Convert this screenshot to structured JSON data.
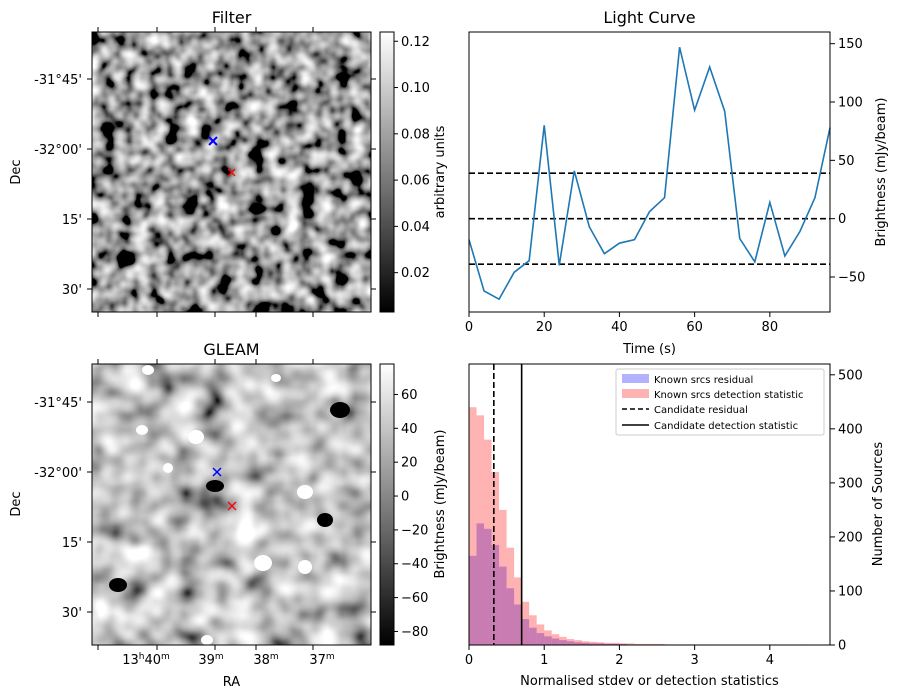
{
  "panels": {
    "filter": {
      "title": "Filter",
      "ylabel": "Dec",
      "ytick_labels": [
        "-31°45'",
        "-32°00'",
        "15'",
        "30'"
      ],
      "colorbar": {
        "label": "arbitrary units",
        "tick_labels": [
          "0.02",
          "0.04",
          "0.06",
          "0.08",
          "0.10",
          "0.12"
        ],
        "range": [
          0.003,
          0.124
        ]
      },
      "markers": [
        {
          "kind": "candidate",
          "color": "#0000ff"
        },
        {
          "kind": "offset",
          "color": "#ff0000"
        }
      ]
    },
    "gleam": {
      "title": "GLEAM",
      "ylabel": "Dec",
      "xlabel": "RA",
      "ytick_labels": [
        "-31°45'",
        "-32°00'",
        "15'",
        "30'"
      ],
      "xtick_labels": [
        {
          "h": "13",
          "hs": "h",
          "m": "40",
          "ms": "m"
        },
        {
          "h": "",
          "hs": "",
          "m": "39",
          "ms": "m"
        },
        {
          "h": "",
          "hs": "",
          "m": "38",
          "ms": "m"
        },
        {
          "h": "",
          "hs": "",
          "m": "37",
          "ms": "m"
        }
      ],
      "colorbar": {
        "label": "Brightness (mJy/beam)",
        "tick_labels": [
          "60",
          "40",
          "20",
          "0",
          "−20",
          "−40",
          "−60",
          "−80"
        ],
        "range": [
          -88,
          78
        ]
      },
      "markers": [
        {
          "kind": "candidate",
          "color": "#0000ff"
        },
        {
          "kind": "offset",
          "color": "#ff0000"
        }
      ]
    },
    "lightcurve": {
      "title": "Light Curve",
      "xlabel": "Time (s)",
      "ylabel": "Brightness (mJy/beam)",
      "xtick_labels": [
        "0",
        "20",
        "40",
        "60",
        "80"
      ],
      "ytick_labels": [
        "150",
        "100",
        "50",
        "0",
        "−50"
      ],
      "line_color": "#1f77b4"
    },
    "histogram": {
      "xlabel": "Normalised stdev or detection statistics",
      "ylabel": "Number of Sources",
      "xtick_labels": [
        "0",
        "1",
        "2",
        "3",
        "4"
      ],
      "ytick_labels": [
        "500",
        "400",
        "300",
        "200",
        "100",
        "0"
      ],
      "legend": [
        {
          "label": "Known srcs residual",
          "kind": "patch",
          "color": "#0000ff"
        },
        {
          "label": "Known srcs detection statistic",
          "kind": "patch",
          "color": "#ff0000"
        },
        {
          "label": "Candidate residual",
          "kind": "dashed-line",
          "color": "#000000"
        },
        {
          "label": "Candidate detection statistic",
          "kind": "solid-line",
          "color": "#000000"
        }
      ]
    }
  },
  "chart_data": [
    {
      "type": "line",
      "title": "Light Curve",
      "xlabel": "Time (s)",
      "ylabel": "Brightness (mJy/beam)",
      "xlim": [
        0,
        96
      ],
      "ylim": [
        -80,
        160
      ],
      "x": [
        0,
        4,
        8,
        12,
        16,
        20,
        24,
        28,
        32,
        36,
        40,
        44,
        48,
        52,
        56,
        60,
        64,
        68,
        72,
        76,
        80,
        84,
        88,
        92,
        96
      ],
      "y": [
        -18,
        -62,
        -69,
        -46,
        -36,
        80,
        -40,
        41,
        -7,
        -30,
        -21,
        -18,
        6,
        18,
        147,
        93,
        130,
        92,
        -17,
        -37,
        14,
        -32,
        -11,
        18,
        78
      ],
      "hlines": [
        {
          "y": 39,
          "style": "dashed",
          "color": "#000000"
        },
        {
          "y": 0,
          "style": "dashed",
          "color": "#000000"
        },
        {
          "y": -39,
          "style": "dashed",
          "color": "#000000"
        }
      ]
    },
    {
      "type": "bar",
      "title": "",
      "xlabel": "Normalised stdev or detection statistics",
      "ylabel": "Number of Sources",
      "xlim": [
        0,
        4.8
      ],
      "ylim": [
        0,
        520
      ],
      "bin_width": 0.1,
      "x": [
        0.05,
        0.15,
        0.25,
        0.35,
        0.45,
        0.55,
        0.65,
        0.75,
        0.85,
        0.95,
        1.05,
        1.15,
        1.25,
        1.35,
        1.45,
        1.55,
        1.65,
        1.75,
        1.85,
        1.95,
        2.05,
        2.15,
        2.25,
        2.35,
        2.45,
        2.55,
        2.65,
        2.75,
        2.85,
        2.95,
        3.05,
        3.15,
        3.25,
        3.35,
        3.45,
        3.55,
        3.65,
        3.75,
        3.85,
        3.95,
        4.05,
        4.15,
        4.25,
        4.35,
        4.45,
        4.55,
        4.65
      ],
      "series": [
        {
          "name": "Known srcs residual",
          "color": "#0000ff",
          "opacity": 0.3,
          "values": [
            165,
            225,
            215,
            185,
            145,
            105,
            75,
            48,
            32,
            22,
            16,
            12,
            9,
            7,
            5,
            4,
            3,
            3,
            2,
            2,
            2,
            1,
            1,
            1,
            1,
            1,
            1,
            0,
            0,
            1,
            0,
            0,
            0,
            0,
            0,
            0,
            0,
            0,
            0,
            0,
            0,
            0,
            0,
            0,
            0,
            0,
            0
          ]
        },
        {
          "name": "Known srcs detection statistic",
          "color": "#ff0000",
          "opacity": 0.3,
          "values": [
            440,
            425,
            380,
            320,
            250,
            180,
            125,
            80,
            55,
            38,
            27,
            20,
            15,
            11,
            9,
            7,
            6,
            5,
            4,
            4,
            3,
            3,
            2,
            2,
            2,
            2,
            1,
            1,
            1,
            1,
            1,
            1,
            1,
            0,
            0,
            0,
            0,
            0,
            0,
            0,
            0,
            0,
            0,
            0,
            1,
            0,
            0
          ]
        }
      ],
      "vlines": [
        {
          "name": "Candidate residual",
          "x": 0.33,
          "style": "dashed",
          "color": "#000000"
        },
        {
          "name": "Candidate detection statistic",
          "x": 0.7,
          "style": "solid",
          "color": "#000000"
        }
      ]
    }
  ]
}
